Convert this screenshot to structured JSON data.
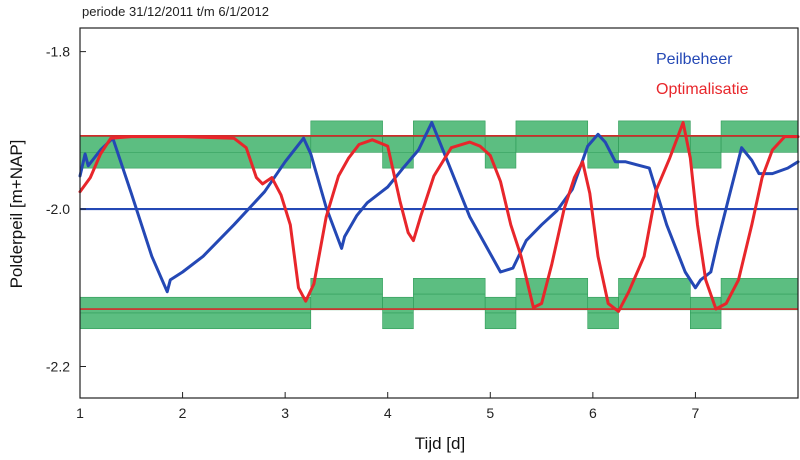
{
  "chart_data": {
    "type": "line",
    "subtitle": "periode 31/12/2011 t/m 6/1/2012",
    "xlabel": "Tijd [d]",
    "ylabel": "Polderpeil [m+NAP]",
    "xlim": [
      1,
      8
    ],
    "ylim": [
      -2.24,
      -1.77
    ],
    "x_ticks": [
      "1",
      "2",
      "3",
      "4",
      "5",
      "6",
      "7"
    ],
    "x_tick_values": [
      1,
      2,
      3,
      4,
      5,
      6,
      7
    ],
    "y_ticks": [
      "-1.8",
      "-2.0",
      "-2.2"
    ],
    "y_tick_values": [
      -1.8,
      -2.0,
      -2.2
    ],
    "grid": false,
    "legend_position": "top-right",
    "colors": {
      "peilbeheer": "#2448b5",
      "optimalisatie": "#e8262b",
      "band": "#3fb36b",
      "limit": "#d42a2a"
    },
    "reference_lines": [
      {
        "y": -1.907,
        "color": "#d42a2a"
      },
      {
        "y": -2.0,
        "color": "#2448b5"
      },
      {
        "y": -2.127,
        "color": "#d42a2a"
      }
    ],
    "bands": [
      {
        "x0": 1.0,
        "x1": 3.25,
        "y_lo": -1.948,
        "y_hi": -1.908
      },
      {
        "x0": 3.25,
        "x1": 3.95,
        "y_lo": -1.928,
        "y_hi": -1.888
      },
      {
        "x0": 3.95,
        "x1": 4.25,
        "y_lo": -1.948,
        "y_hi": -1.908
      },
      {
        "x0": 4.25,
        "x1": 4.95,
        "y_lo": -1.928,
        "y_hi": -1.888
      },
      {
        "x0": 4.95,
        "x1": 5.25,
        "y_lo": -1.948,
        "y_hi": -1.908
      },
      {
        "x0": 5.25,
        "x1": 5.95,
        "y_lo": -1.928,
        "y_hi": -1.888
      },
      {
        "x0": 5.95,
        "x1": 6.25,
        "y_lo": -1.948,
        "y_hi": -1.908
      },
      {
        "x0": 6.25,
        "x1": 6.95,
        "y_lo": -1.928,
        "y_hi": -1.888
      },
      {
        "x0": 6.95,
        "x1": 7.25,
        "y_lo": -1.948,
        "y_hi": -1.908
      },
      {
        "x0": 7.25,
        "x1": 8.0,
        "y_lo": -1.928,
        "y_hi": -1.888
      },
      {
        "x0": 1.0,
        "x1": 3.25,
        "y_lo": -2.152,
        "y_hi": -2.112
      },
      {
        "x0": 3.25,
        "x1": 3.95,
        "y_lo": -2.128,
        "y_hi": -2.088
      },
      {
        "x0": 3.95,
        "x1": 4.25,
        "y_lo": -2.152,
        "y_hi": -2.112
      },
      {
        "x0": 4.25,
        "x1": 4.95,
        "y_lo": -2.128,
        "y_hi": -2.088
      },
      {
        "x0": 4.95,
        "x1": 5.25,
        "y_lo": -2.152,
        "y_hi": -2.112
      },
      {
        "x0": 5.25,
        "x1": 5.95,
        "y_lo": -2.128,
        "y_hi": -2.088
      },
      {
        "x0": 5.95,
        "x1": 6.25,
        "y_lo": -2.152,
        "y_hi": -2.112
      },
      {
        "x0": 6.25,
        "x1": 6.95,
        "y_lo": -2.128,
        "y_hi": -2.088
      },
      {
        "x0": 6.95,
        "x1": 7.25,
        "y_lo": -2.152,
        "y_hi": -2.112
      },
      {
        "x0": 7.25,
        "x1": 8.0,
        "y_lo": -2.128,
        "y_hi": -2.088
      }
    ],
    "series": [
      {
        "name": "Peilbeheer",
        "color": "#2448b5",
        "points": [
          [
            1.0,
            -1.958
          ],
          [
            1.05,
            -1.93
          ],
          [
            1.08,
            -1.945
          ],
          [
            1.2,
            -1.925
          ],
          [
            1.32,
            -1.91
          ],
          [
            1.5,
            -1.98
          ],
          [
            1.7,
            -2.06
          ],
          [
            1.85,
            -2.105
          ],
          [
            1.88,
            -2.09
          ],
          [
            2.0,
            -2.08
          ],
          [
            2.2,
            -2.06
          ],
          [
            2.5,
            -2.02
          ],
          [
            2.8,
            -1.978
          ],
          [
            3.0,
            -1.94
          ],
          [
            3.18,
            -1.91
          ],
          [
            3.25,
            -1.93
          ],
          [
            3.4,
            -1.998
          ],
          [
            3.55,
            -2.05
          ],
          [
            3.58,
            -2.035
          ],
          [
            3.7,
            -2.008
          ],
          [
            3.8,
            -1.992
          ],
          [
            4.0,
            -1.972
          ],
          [
            4.15,
            -1.948
          ],
          [
            4.3,
            -1.925
          ],
          [
            4.43,
            -1.89
          ],
          [
            4.6,
            -1.945
          ],
          [
            4.8,
            -2.01
          ],
          [
            4.95,
            -2.045
          ],
          [
            5.1,
            -2.08
          ],
          [
            5.22,
            -2.075
          ],
          [
            5.35,
            -2.04
          ],
          [
            5.5,
            -2.02
          ],
          [
            5.65,
            -2.002
          ],
          [
            5.8,
            -1.975
          ],
          [
            5.95,
            -1.92
          ],
          [
            6.05,
            -1.905
          ],
          [
            6.12,
            -1.915
          ],
          [
            6.22,
            -1.94
          ],
          [
            6.32,
            -1.94
          ],
          [
            6.55,
            -1.948
          ],
          [
            6.72,
            -2.02
          ],
          [
            6.9,
            -2.08
          ],
          [
            7.0,
            -2.1
          ],
          [
            7.05,
            -2.09
          ],
          [
            7.15,
            -2.08
          ],
          [
            7.22,
            -2.04
          ],
          [
            7.32,
            -1.988
          ],
          [
            7.45,
            -1.922
          ],
          [
            7.55,
            -1.938
          ],
          [
            7.62,
            -1.955
          ],
          [
            7.75,
            -1.955
          ],
          [
            7.9,
            -1.948
          ],
          [
            8.0,
            -1.94
          ]
        ]
      },
      {
        "name": "Optimalisatie",
        "color": "#e8262b",
        "points": [
          [
            1.0,
            -1.978
          ],
          [
            1.1,
            -1.96
          ],
          [
            1.2,
            -1.93
          ],
          [
            1.3,
            -1.91
          ],
          [
            1.5,
            -1.908
          ],
          [
            2.0,
            -1.908
          ],
          [
            2.5,
            -1.91
          ],
          [
            2.62,
            -1.922
          ],
          [
            2.72,
            -1.96
          ],
          [
            2.78,
            -1.968
          ],
          [
            2.87,
            -1.96
          ],
          [
            2.96,
            -1.982
          ],
          [
            3.05,
            -2.02
          ],
          [
            3.13,
            -2.1
          ],
          [
            3.2,
            -2.117
          ],
          [
            3.28,
            -2.095
          ],
          [
            3.4,
            -2.01
          ],
          [
            3.52,
            -1.958
          ],
          [
            3.62,
            -1.935
          ],
          [
            3.72,
            -1.918
          ],
          [
            3.85,
            -1.912
          ],
          [
            4.0,
            -1.92
          ],
          [
            4.12,
            -1.99
          ],
          [
            4.2,
            -2.03
          ],
          [
            4.25,
            -2.04
          ],
          [
            4.32,
            -2.01
          ],
          [
            4.45,
            -1.958
          ],
          [
            4.62,
            -1.922
          ],
          [
            4.8,
            -1.915
          ],
          [
            4.9,
            -1.92
          ],
          [
            5.0,
            -1.932
          ],
          [
            5.1,
            -1.965
          ],
          [
            5.2,
            -2.02
          ],
          [
            5.3,
            -2.06
          ],
          [
            5.42,
            -2.125
          ],
          [
            5.5,
            -2.12
          ],
          [
            5.6,
            -2.07
          ],
          [
            5.72,
            -2.0
          ],
          [
            5.82,
            -1.96
          ],
          [
            5.9,
            -1.94
          ],
          [
            5.97,
            -1.98
          ],
          [
            6.05,
            -2.06
          ],
          [
            6.15,
            -2.12
          ],
          [
            6.25,
            -2.13
          ],
          [
            6.35,
            -2.105
          ],
          [
            6.5,
            -2.06
          ],
          [
            6.62,
            -1.975
          ],
          [
            6.75,
            -1.935
          ],
          [
            6.88,
            -1.89
          ],
          [
            6.95,
            -1.935
          ],
          [
            7.02,
            -2.02
          ],
          [
            7.1,
            -2.09
          ],
          [
            7.2,
            -2.127
          ],
          [
            7.3,
            -2.12
          ],
          [
            7.42,
            -2.09
          ],
          [
            7.55,
            -2.02
          ],
          [
            7.65,
            -1.96
          ],
          [
            7.75,
            -1.925
          ],
          [
            7.87,
            -1.908
          ],
          [
            8.0,
            -1.908
          ]
        ]
      }
    ]
  }
}
